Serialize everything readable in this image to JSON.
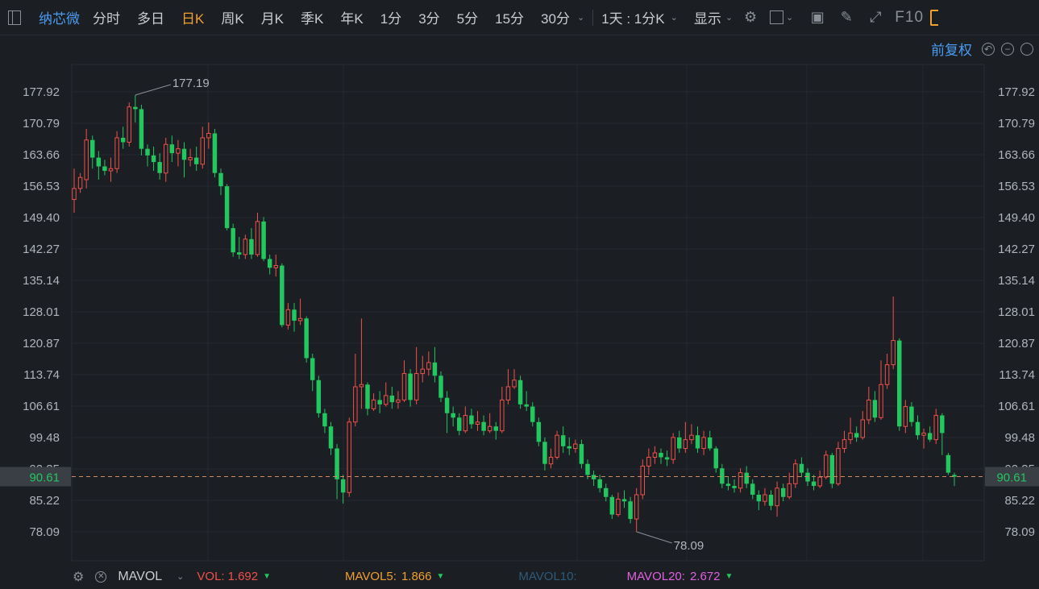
{
  "toolbar": {
    "stock_name": "纳芯微",
    "periods": [
      "分时",
      "多日",
      "日K",
      "周K",
      "月K",
      "季K",
      "年K",
      "1分",
      "3分",
      "5分",
      "15分",
      "30分"
    ],
    "active_period": "日K",
    "multi_period": "1天 : 1分K",
    "display_label": "显示",
    "f10_label": "F10"
  },
  "adjust": {
    "label": "前复权"
  },
  "indicator": {
    "name": "MAVOL",
    "vol_label": "VOL:",
    "vol_value": "1.692",
    "mavol5_label": "MAVOL5:",
    "mavol5_value": "1.866",
    "mavol10_label": "MAVOL10:",
    "mavol10_value": "",
    "mavol20_label": "MAVOL20:",
    "mavol20_value": "2.672"
  },
  "colors": {
    "up": "#f0504a",
    "down": "#22c760",
    "accent": "#f0a030",
    "link": "#4a9cf0",
    "current": "#22c760"
  },
  "chart_data": {
    "type": "candlestick",
    "y_ticks": [
      "177.92",
      "170.79",
      "163.66",
      "156.53",
      "149.40",
      "142.27",
      "135.14",
      "128.01",
      "120.87",
      "113.74",
      "106.61",
      "99.48",
      "92.35",
      "85.22",
      "78.09"
    ],
    "y_range": [
      78.09,
      177.92
    ],
    "current_price": "90.61",
    "high_label": "177.19",
    "low_label": "78.09",
    "candles": [
      [
        153.5,
        156.0,
        160.5,
        150.5
      ],
      [
        156.0,
        158.5,
        159.5,
        155.0
      ],
      [
        158.0,
        167.0,
        169.5,
        156.0
      ],
      [
        167.0,
        163.0,
        168.0,
        160.5
      ],
      [
        163.0,
        161.0,
        164.5,
        158.0
      ],
      [
        161.0,
        160.0,
        162.5,
        159.0
      ],
      [
        160.0,
        160.5,
        163.0,
        157.5
      ],
      [
        160.5,
        167.5,
        169.0,
        159.5
      ],
      [
        167.5,
        166.5,
        170.0,
        165.0
      ],
      [
        166.5,
        174.5,
        175.5,
        165.5
      ],
      [
        174.5,
        174.0,
        177.19,
        171.0
      ],
      [
        174.0,
        165.0,
        175.0,
        163.5
      ],
      [
        165.0,
        163.5,
        166.0,
        161.0
      ],
      [
        163.5,
        162.0,
        165.5,
        160.0
      ],
      [
        162.0,
        159.5,
        164.0,
        158.0
      ],
      [
        159.5,
        166.0,
        167.5,
        157.5
      ],
      [
        166.0,
        164.0,
        168.0,
        162.0
      ],
      [
        164.0,
        165.0,
        167.0,
        161.0
      ],
      [
        165.0,
        162.5,
        166.5,
        158.5
      ],
      [
        162.5,
        163.0,
        165.0,
        161.0
      ],
      [
        163.0,
        161.5,
        165.5,
        160.0
      ],
      [
        161.5,
        167.5,
        170.0,
        160.5
      ],
      [
        167.5,
        168.5,
        171.0,
        165.0
      ],
      [
        168.5,
        159.5,
        169.5,
        158.5
      ],
      [
        159.5,
        156.5,
        160.5,
        154.5
      ],
      [
        156.5,
        147.0,
        157.0,
        146.5
      ],
      [
        147.0,
        141.5,
        148.0,
        140.5
      ],
      [
        141.5,
        141.0,
        145.0,
        140.0
      ],
      [
        141.0,
        144.5,
        145.5,
        140.0
      ],
      [
        144.5,
        141.0,
        147.0,
        140.0
      ],
      [
        141.0,
        148.5,
        150.5,
        140.5
      ],
      [
        148.5,
        140.0,
        149.5,
        139.5
      ],
      [
        140.0,
        138.0,
        141.0,
        136.5
      ],
      [
        138.0,
        138.5,
        141.0,
        136.0
      ],
      [
        138.5,
        125.0,
        139.0,
        124.5
      ],
      [
        125.0,
        128.5,
        130.0,
        124.0
      ],
      [
        128.5,
        126.0,
        130.0,
        123.5
      ],
      [
        126.0,
        126.5,
        131.0,
        125.0
      ],
      [
        126.5,
        117.5,
        127.0,
        116.5
      ],
      [
        117.5,
        112.5,
        118.5,
        110.0
      ],
      [
        112.5,
        105.0,
        113.5,
        104.0
      ],
      [
        105.0,
        102.0,
        106.0,
        100.5
      ],
      [
        102.0,
        97.0,
        103.0,
        95.5
      ],
      [
        97.0,
        90.0,
        98.0,
        85.5
      ],
      [
        90.0,
        87.0,
        91.0,
        84.5
      ],
      [
        87.0,
        103.0,
        104.0,
        86.0
      ],
      [
        103.0,
        111.0,
        118.5,
        102.0
      ],
      [
        111.0,
        111.5,
        126.5,
        106.0
      ],
      [
        111.5,
        106.0,
        112.0,
        104.5
      ],
      [
        106.0,
        108.0,
        109.5,
        105.5
      ],
      [
        108.0,
        107.0,
        110.0,
        105.0
      ],
      [
        107.0,
        109.0,
        112.0,
        106.5
      ],
      [
        109.0,
        107.5,
        111.0,
        106.0
      ],
      [
        107.5,
        108.0,
        110.0,
        106.0
      ],
      [
        108.0,
        114.0,
        117.0,
        107.5
      ],
      [
        114.0,
        108.0,
        115.0,
        106.5
      ],
      [
        108.0,
        114.0,
        120.0,
        107.0
      ],
      [
        114.0,
        115.0,
        118.0,
        112.0
      ],
      [
        115.0,
        116.5,
        119.0,
        113.5
      ],
      [
        116.5,
        113.5,
        120.0,
        112.0
      ],
      [
        113.5,
        108.5,
        114.5,
        107.5
      ],
      [
        108.5,
        105.0,
        110.0,
        100.5
      ],
      [
        105.0,
        104.0,
        106.5,
        102.0
      ],
      [
        104.0,
        101.0,
        105.0,
        100.0
      ],
      [
        101.0,
        104.5,
        106.5,
        100.5
      ],
      [
        104.5,
        102.5,
        106.0,
        101.5
      ],
      [
        102.5,
        103.0,
        105.5,
        101.0
      ],
      [
        103.0,
        101.0,
        104.5,
        100.0
      ],
      [
        101.0,
        102.0,
        105.0,
        100.5
      ],
      [
        102.0,
        101.0,
        103.0,
        99.0
      ],
      [
        101.0,
        108.0,
        111.0,
        100.5
      ],
      [
        108.0,
        111.0,
        115.0,
        107.0
      ],
      [
        111.0,
        112.5,
        115.0,
        110.5
      ],
      [
        112.5,
        107.0,
        113.5,
        106.0
      ],
      [
        107.0,
        106.5,
        110.0,
        105.5
      ],
      [
        106.5,
        103.0,
        107.5,
        102.0
      ],
      [
        103.0,
        98.5,
        104.0,
        97.5
      ],
      [
        98.5,
        93.5,
        99.5,
        92.0
      ],
      [
        93.5,
        95.0,
        97.0,
        92.5
      ],
      [
        95.0,
        100.0,
        101.0,
        94.5
      ],
      [
        100.0,
        97.5,
        102.0,
        96.0
      ],
      [
        97.5,
        97.0,
        99.5,
        95.5
      ],
      [
        97.0,
        98.0,
        99.0,
        96.0
      ],
      [
        98.0,
        93.5,
        99.0,
        92.5
      ],
      [
        93.5,
        91.0,
        94.5,
        90.0
      ],
      [
        91.0,
        90.0,
        92.0,
        88.5
      ],
      [
        90.0,
        88.0,
        91.0,
        87.0
      ],
      [
        88.0,
        86.0,
        89.0,
        85.0
      ],
      [
        86.0,
        82.0,
        86.5,
        81.0
      ],
      [
        82.0,
        85.5,
        87.0,
        81.5
      ],
      [
        85.5,
        85.0,
        87.5,
        83.5
      ],
      [
        85.0,
        81.0,
        86.0,
        80.0
      ],
      [
        81.0,
        86.5,
        88.0,
        78.09
      ],
      [
        86.5,
        93.0,
        94.5,
        85.5
      ],
      [
        93.0,
        95.0,
        97.0,
        91.0
      ],
      [
        95.0,
        96.0,
        97.5,
        93.5
      ],
      [
        96.0,
        95.0,
        97.0,
        93.5
      ],
      [
        95.0,
        94.5,
        96.5,
        93.0
      ],
      [
        94.5,
        99.5,
        100.5,
        93.5
      ],
      [
        99.5,
        97.0,
        101.0,
        96.0
      ],
      [
        97.0,
        99.0,
        103.0,
        96.0
      ],
      [
        99.0,
        100.0,
        102.5,
        98.0
      ],
      [
        100.0,
        97.0,
        102.0,
        96.0
      ],
      [
        97.0,
        99.5,
        101.0,
        95.5
      ],
      [
        99.5,
        97.0,
        101.0,
        96.5
      ],
      [
        97.0,
        92.5,
        97.5,
        91.5
      ],
      [
        92.5,
        89.0,
        93.5,
        88.0
      ],
      [
        89.0,
        88.5,
        90.5,
        87.5
      ],
      [
        88.5,
        88.0,
        90.0,
        87.0
      ],
      [
        88.0,
        91.5,
        92.5,
        87.0
      ],
      [
        91.5,
        89.0,
        93.0,
        88.0
      ],
      [
        89.0,
        86.5,
        90.0,
        85.5
      ],
      [
        86.5,
        85.0,
        87.5,
        83.0
      ],
      [
        85.0,
        86.5,
        88.0,
        84.0
      ],
      [
        86.5,
        84.0,
        87.5,
        83.0
      ],
      [
        84.0,
        88.0,
        89.5,
        81.5
      ],
      [
        88.0,
        86.0,
        89.0,
        85.0
      ],
      [
        86.0,
        89.0,
        91.5,
        85.5
      ],
      [
        89.0,
        93.5,
        94.5,
        88.0
      ],
      [
        93.5,
        91.5,
        95.0,
        90.5
      ],
      [
        91.5,
        89.5,
        92.5,
        88.5
      ],
      [
        89.5,
        88.5,
        91.0,
        87.5
      ],
      [
        88.5,
        90.5,
        92.0,
        88.0
      ],
      [
        90.5,
        95.5,
        96.5,
        90.0
      ],
      [
        95.5,
        89.0,
        96.0,
        88.0
      ],
      [
        89.0,
        97.0,
        98.5,
        88.5
      ],
      [
        97.0,
        99.0,
        101.0,
        96.0
      ],
      [
        99.0,
        100.5,
        104.0,
        98.0
      ],
      [
        100.5,
        99.5,
        102.0,
        98.5
      ],
      [
        99.5,
        103.5,
        105.5,
        99.0
      ],
      [
        103.5,
        108.0,
        111.0,
        102.5
      ],
      [
        108.0,
        104.0,
        110.0,
        103.0
      ],
      [
        104.0,
        111.5,
        117.0,
        103.5
      ],
      [
        111.5,
        116.0,
        118.5,
        110.5
      ],
      [
        116.0,
        121.5,
        131.5,
        115.0
      ],
      [
        121.5,
        102.0,
        122.0,
        101.0
      ],
      [
        102.0,
        106.5,
        108.0,
        100.5
      ],
      [
        106.5,
        103.0,
        107.5,
        102.0
      ],
      [
        103.0,
        100.0,
        104.5,
        99.0
      ],
      [
        100.0,
        100.5,
        101.5,
        97.0
      ],
      [
        100.5,
        99.0,
        102.0,
        98.5
      ],
      [
        99.0,
        104.5,
        106.0,
        98.0
      ],
      [
        104.5,
        100.5,
        105.0,
        95.5
      ],
      [
        95.5,
        91.5,
        96.0,
        91.0
      ],
      [
        91.0,
        90.61,
        91.5,
        88.5
      ]
    ]
  }
}
